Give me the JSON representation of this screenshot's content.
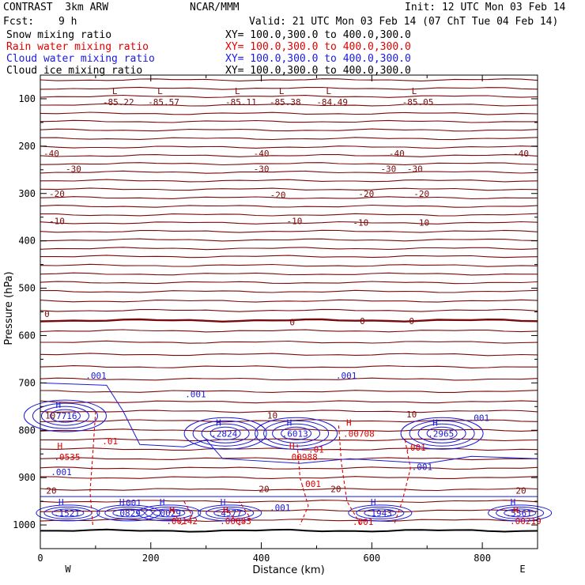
{
  "header": {
    "model": "CONTRAST  3km ARW",
    "org": "NCAR/MMM",
    "init": "Init: 12 UTC Mon 03 Feb 14",
    "fcst_label": "Fcst:",
    "fcst_value": "9 h",
    "valid": "Valid: 21 UTC Mon 03 Feb 14 (07 ChT Tue 04 Feb 14)",
    "fields": [
      {
        "name": "Snow mixing ratio",
        "xy": "XY= 100.0,300.0 to 400.0,300.0",
        "color": "#000000"
      },
      {
        "name": "Rain water mixing ratio",
        "xy": "XY= 100.0,300.0 to 400.0,300.0",
        "color": "#e00000"
      },
      {
        "name": "Cloud water mixing ratio",
        "xy": "XY= 100.0,300.0 to 400.0,300.0",
        "color": "#1a1adc"
      },
      {
        "name": "Cloud ice mixing ratio",
        "xy": "XY= 100.0,300.0 to 400.0,300.0",
        "color": "#000000"
      }
    ]
  },
  "chart_data": {
    "type": "line",
    "xlabel": "Distance (km)",
    "ylabel": "Pressure (hPa)",
    "xlim": [
      0,
      900
    ],
    "ylim": [
      1050,
      50
    ],
    "x_ticks": [
      0,
      200,
      400,
      600,
      800
    ],
    "y_ticks": [
      100,
      200,
      300,
      400,
      500,
      600,
      700,
      800,
      900,
      1000
    ],
    "x_ends": {
      "left": "W",
      "right": "E"
    },
    "colors": {
      "temperature": "#7a0a0a",
      "rain": "#e00000",
      "cloud": "#1a1adc"
    },
    "temperature_contours": [
      {
        "p": 60
      },
      {
        "p": 78
      },
      {
        "p": 95
      },
      {
        "p": 113
      },
      {
        "p": 131
      },
      {
        "p": 148
      },
      {
        "p": 166
      },
      {
        "p": 184
      },
      {
        "p": 202
      },
      {
        "p": 220
      },
      {
        "p": 237
      },
      {
        "p": 255
      },
      {
        "p": 273
      },
      {
        "p": 291
      },
      {
        "p": 309
      },
      {
        "p": 327
      },
      {
        "p": 345
      },
      {
        "p": 362
      },
      {
        "p": 380
      },
      {
        "p": 398
      },
      {
        "p": 416
      },
      {
        "p": 433
      },
      {
        "p": 452
      },
      {
        "p": 470
      },
      {
        "p": 488
      },
      {
        "p": 507
      },
      {
        "p": 527
      },
      {
        "p": 547
      },
      {
        "p": 568,
        "bold": true
      },
      {
        "p": 590
      },
      {
        "p": 614
      },
      {
        "p": 640
      },
      {
        "p": 666
      },
      {
        "p": 692
      },
      {
        "p": 718
      },
      {
        "p": 740
      },
      {
        "p": 760
      },
      {
        "p": 780
      },
      {
        "p": 800
      },
      {
        "p": 820
      },
      {
        "p": 840
      },
      {
        "p": 860
      },
      {
        "p": 880
      },
      {
        "p": 900
      },
      {
        "p": 925
      },
      {
        "p": 950
      },
      {
        "p": 970
      },
      {
        "p": 990
      },
      {
        "p": 1012,
        "black": true
      }
    ],
    "temperature_labels": [
      {
        "x": 20,
        "p": 215,
        "text": "-40"
      },
      {
        "x": 400,
        "p": 215,
        "text": "-40"
      },
      {
        "x": 645,
        "p": 215,
        "text": "-40"
      },
      {
        "x": 870,
        "p": 215,
        "text": "-40"
      },
      {
        "x": 60,
        "p": 248,
        "text": "-30"
      },
      {
        "x": 400,
        "p": 248,
        "text": "-30"
      },
      {
        "x": 630,
        "p": 248,
        "text": "-30"
      },
      {
        "x": 678,
        "p": 248,
        "text": "-30"
      },
      {
        "x": 30,
        "p": 300,
        "text": "-20"
      },
      {
        "x": 430,
        "p": 303,
        "text": "-20"
      },
      {
        "x": 590,
        "p": 300,
        "text": "-20"
      },
      {
        "x": 690,
        "p": 300,
        "text": "-20"
      },
      {
        "x": 30,
        "p": 358,
        "text": "-10"
      },
      {
        "x": 460,
        "p": 358,
        "text": "-10"
      },
      {
        "x": 580,
        "p": 361,
        "text": "-10"
      },
      {
        "x": 690,
        "p": 361,
        "text": "-10"
      },
      {
        "x": 12,
        "p": 554,
        "text": "0"
      },
      {
        "x": 456,
        "p": 572,
        "text": "0"
      },
      {
        "x": 583,
        "p": 569,
        "text": "0"
      },
      {
        "x": 672,
        "p": 569,
        "text": "0"
      },
      {
        "x": 18,
        "p": 769,
        "text": "10"
      },
      {
        "x": 420,
        "p": 769,
        "text": "10"
      },
      {
        "x": 672,
        "p": 766,
        "text": "10"
      },
      {
        "x": 20,
        "p": 927,
        "text": "20"
      },
      {
        "x": 405,
        "p": 924,
        "text": "20"
      },
      {
        "x": 535,
        "p": 924,
        "text": "20"
      },
      {
        "x": 870,
        "p": 927,
        "text": "20"
      }
    ],
    "lows": [
      {
        "x": 130,
        "p": 90,
        "value": "-85.22"
      },
      {
        "x": 212,
        "p": 90,
        "value": "-85.57"
      },
      {
        "x": 352,
        "p": 90,
        "value": "-85.11"
      },
      {
        "x": 432,
        "p": 90,
        "value": "-85.38"
      },
      {
        "x": 517,
        "p": 90,
        "value": "-84.49"
      },
      {
        "x": 672,
        "p": 90,
        "value": "-85.05"
      }
    ],
    "cloud_water_maxima": [
      {
        "x": 45,
        "p": 763,
        "value": ".7716"
      },
      {
        "x": 335,
        "p": 800,
        "value": ".2824"
      },
      {
        "x": 463,
        "p": 800,
        "value": ".6013"
      },
      {
        "x": 727,
        "p": 800,
        "value": ".2965"
      },
      {
        "x": 50,
        "p": 968,
        "value": ".1521"
      },
      {
        "x": 160,
        "p": 968,
        "value": ".0829"
      },
      {
        "x": 233,
        "p": 968,
        "value": ".0029"
      },
      {
        "x": 343,
        "p": 968,
        "value": ".4577"
      },
      {
        "x": 615,
        "p": 968,
        "value": ".1943"
      },
      {
        "x": 868,
        "p": 968,
        "value": ".5361"
      }
    ],
    "cloud_water_labels": [
      {
        "x": 82,
        "p": 691,
        "text": ".001"
      },
      {
        "x": 262,
        "p": 730,
        "text": ".001"
      },
      {
        "x": 535,
        "p": 691,
        "text": ".001"
      },
      {
        "x": 775,
        "p": 780,
        "text": ".001"
      },
      {
        "x": 19,
        "p": 895,
        "text": ".001"
      },
      {
        "x": 672,
        "p": 884,
        "text": ".001"
      },
      {
        "x": 415,
        "p": 970,
        "text": ".001"
      },
      {
        "x": 145,
        "p": 960,
        "text": ".001"
      }
    ],
    "rain_water_maxima": [
      {
        "x": 45,
        "p": 850,
        "value": ".0535"
      },
      {
        "x": 465,
        "p": 850,
        "value": ".00988"
      },
      {
        "x": 568,
        "p": 800,
        "value": ".00708"
      },
      {
        "x": 248,
        "p": 985,
        "value": ".00142"
      },
      {
        "x": 345,
        "p": 985,
        "value": ".00083"
      },
      {
        "x": 870,
        "p": 985,
        "value": ".00219"
      }
    ],
    "rain_water_labels": [
      {
        "x": 112,
        "p": 830,
        "text": ".01"
      },
      {
        "x": 485,
        "p": 847,
        "text": ".01"
      },
      {
        "x": 660,
        "p": 843,
        "text": ".001"
      },
      {
        "x": 470,
        "p": 920,
        "text": ".001"
      },
      {
        "x": 565,
        "p": 1000,
        "text": ".001"
      }
    ]
  }
}
